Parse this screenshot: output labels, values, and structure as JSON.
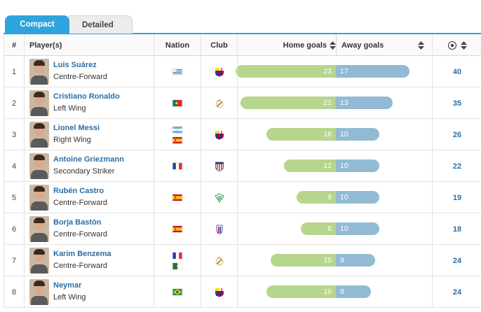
{
  "tabs": [
    {
      "label": "Compact",
      "active": true
    },
    {
      "label": "Detailed",
      "active": false
    }
  ],
  "columns": {
    "num": "#",
    "player": "Player(s)",
    "nation": "Nation",
    "club": "Club",
    "home": "Home goals",
    "away": "Away goals",
    "total_icon": "ball-icon"
  },
  "colors": {
    "accent": "#2fa4dc",
    "home_bar": "#b6d58d",
    "away_bar": "#93bad4",
    "link": "#2a6ea6"
  },
  "rows": [
    {
      "num": "1",
      "name": "Luis Suárez",
      "position": "Centre-Forward",
      "nations": [
        "uruguay"
      ],
      "club": "barcelona",
      "home": "23",
      "away": "17",
      "total": "40"
    },
    {
      "num": "2",
      "name": "Cristiano Ronaldo",
      "position": "Left Wing",
      "nations": [
        "portugal"
      ],
      "club": "real-madrid",
      "home": "22",
      "away": "13",
      "total": "35"
    },
    {
      "num": "3",
      "name": "Lionel Messi",
      "position": "Right Wing",
      "nations": [
        "argentina",
        "spain"
      ],
      "club": "barcelona",
      "home": "16",
      "away": "10",
      "total": "26"
    },
    {
      "num": "4",
      "name": "Antoine Griezmann",
      "position": "Secondary Striker",
      "nations": [
        "france"
      ],
      "club": "atletico-madrid",
      "home": "12",
      "away": "10",
      "total": "22"
    },
    {
      "num": "5",
      "name": "Rubén Castro",
      "position": "Centre-Forward",
      "nations": [
        "spain"
      ],
      "club": "real-betis",
      "home": "9",
      "away": "10",
      "total": "19"
    },
    {
      "num": "6",
      "name": "Borja Bastón",
      "position": "Centre-Forward",
      "nations": [
        "spain"
      ],
      "club": "eibar",
      "home": "8",
      "away": "10",
      "total": "18"
    },
    {
      "num": "7",
      "name": "Karim Benzema",
      "position": "Centre-Forward",
      "nations": [
        "france",
        "algeria"
      ],
      "club": "real-madrid",
      "home": "15",
      "away": "9",
      "total": "24"
    },
    {
      "num": "8",
      "name": "Neymar",
      "position": "Left Wing",
      "nations": [
        "brazil"
      ],
      "club": "barcelona",
      "home": "16",
      "away": "8",
      "total": "24"
    }
  ]
}
